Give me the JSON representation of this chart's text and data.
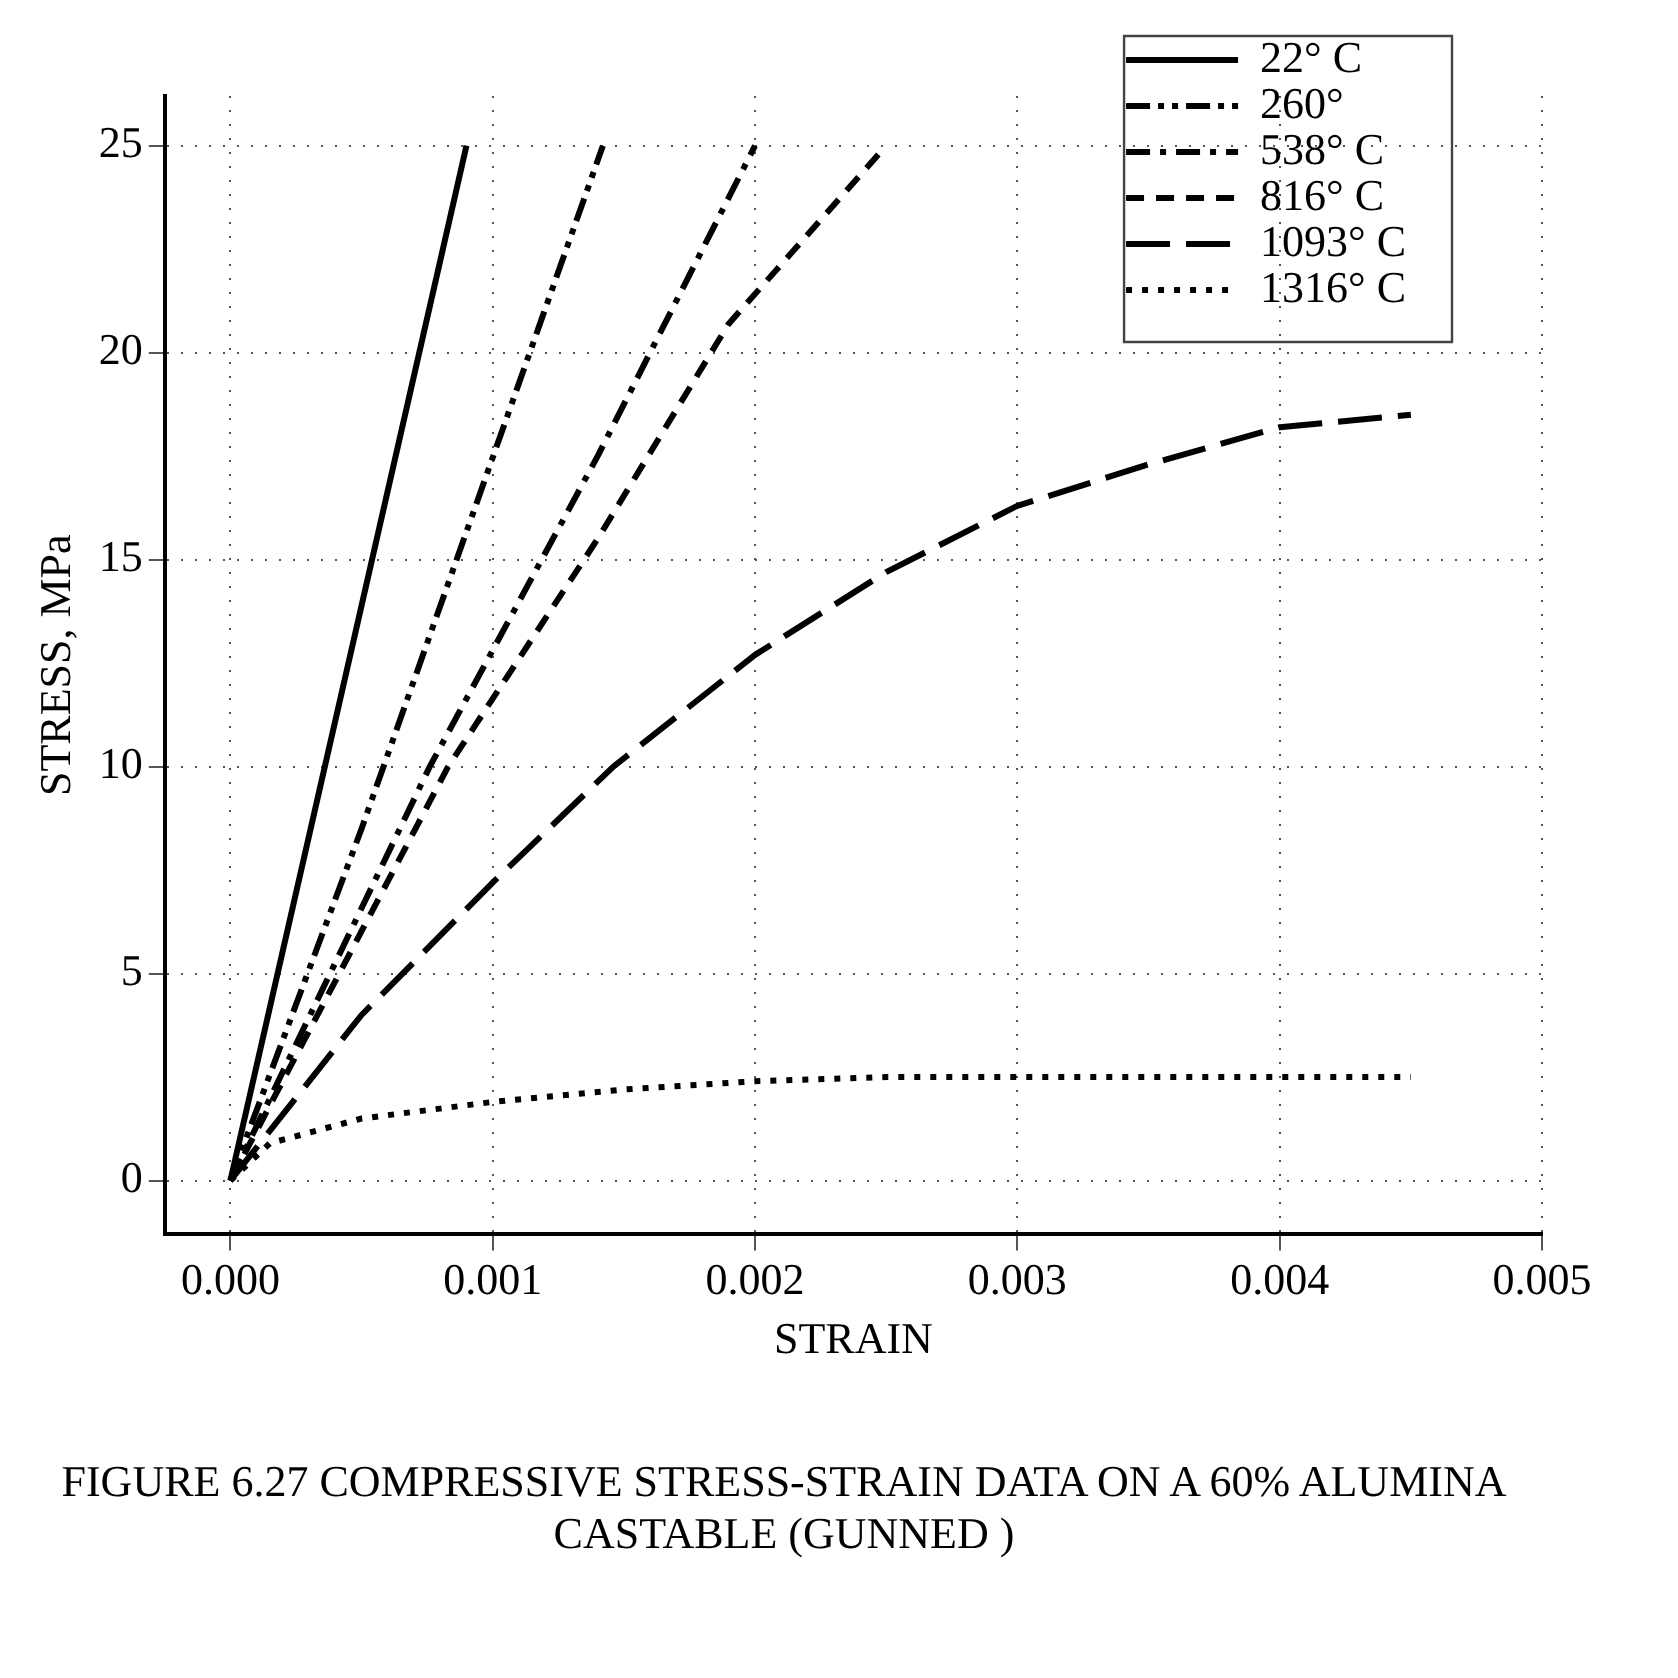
{
  "chart_data": {
    "type": "line",
    "xlabel": "STRAIN",
    "ylabel": "STRESS, MPa",
    "annotations": [
      "FIGURE 6.27 COMPRESSIVE STRESS-STRAIN DATA ON A 60% ALUMINA CASTABLE (GUNNED )"
    ],
    "xlim": [
      -0.00025,
      0.005
    ],
    "ylim": [
      -1.3,
      26.2
    ],
    "xticks": [
      {
        "value": 0,
        "label": "0.000"
      },
      {
        "value": 0.001,
        "label": "0.001"
      },
      {
        "value": 0.002,
        "label": "0.002"
      },
      {
        "value": 0.003,
        "label": "0.003"
      },
      {
        "value": 0.004,
        "label": "0.004"
      },
      {
        "value": 0.005,
        "label": "0.005"
      }
    ],
    "yticks": [
      0,
      5,
      10,
      15,
      20,
      25
    ],
    "grid": true,
    "legend": "top right",
    "marker": "none",
    "series": [
      {
        "name": "22° C",
        "color": "#000000",
        "line_style": "solid",
        "x": [
          0,
          0.0009
        ],
        "values": [
          0,
          25
        ]
      },
      {
        "name": "260°",
        "color": "#000000",
        "line_style": "dashdotdot",
        "x": [
          0,
          0.0005,
          0.00142
        ],
        "values": [
          0,
          8.5,
          25
        ]
      },
      {
        "name": "538° C",
        "color": "#000000",
        "line_style": "dashdot",
        "x": [
          0,
          0.00076,
          0.0014,
          0.002
        ],
        "values": [
          0,
          10,
          17.5,
          25
        ]
      },
      {
        "name": "816° C",
        "color": "#000000",
        "line_style": "dashed",
        "x": [
          0,
          0.00083,
          0.0014,
          0.0019,
          0.0025
        ],
        "values": [
          0,
          10,
          15.5,
          20.7,
          25
        ]
      },
      {
        "name": "1093° C",
        "color": "#000000",
        "line_style": "longdash",
        "x": [
          0,
          0.0005,
          0.001,
          0.00146,
          0.002,
          0.0025,
          0.003,
          0.0035,
          0.004,
          0.0045
        ],
        "values": [
          0,
          4,
          7.2,
          10,
          12.7,
          14.7,
          16.3,
          17.3,
          18.2,
          18.5
        ]
      },
      {
        "name": "1316° C",
        "color": "#000000",
        "line_style": "dotted",
        "x": [
          0,
          0.00015,
          0.0005,
          0.001,
          0.0015,
          0.002,
          0.0025,
          0.003,
          0.0045
        ],
        "values": [
          0,
          0.9,
          1.5,
          1.9,
          2.2,
          2.4,
          2.5,
          2.5,
          2.5
        ]
      }
    ]
  }
}
